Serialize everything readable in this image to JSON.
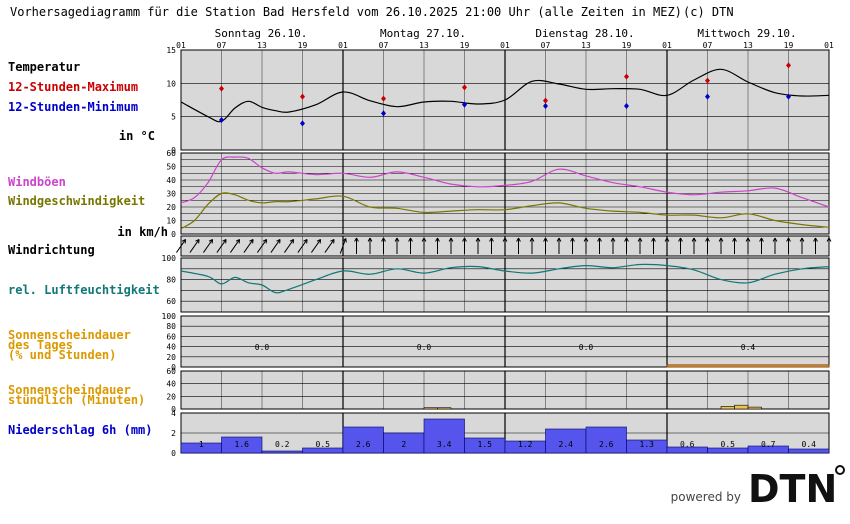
{
  "header": {
    "title": "Vorhersagediagramm für die Station Bad Hersfeld vom 26.10.2025 21:00 Uhr (alle Zeiten in MEZ)",
    "copyright": "(c) DTN"
  },
  "days": [
    "Sonntag 26.10.",
    "Montag 27.10.",
    "Dienstag 28.10.",
    "Mittwoch 29.10."
  ],
  "hour_ticks": [
    "01",
    "07",
    "13",
    "19",
    "01",
    "07",
    "13",
    "19",
    "01",
    "07",
    "13",
    "19",
    "01",
    "07",
    "13",
    "19",
    "01"
  ],
  "labels": {
    "temperature": "Temperatur",
    "max": "12-Stunden-Maximum",
    "min": "12-Stunden-Minimum",
    "temp_unit": "in °C",
    "gusts": "Windböen",
    "wind_speed": "Windgeschwindigkeit",
    "wind_unit": "in km/h",
    "wind_dir": "Windrichtung",
    "humidity": "rel. Luftfeuchtigkeit",
    "sun_daily_1": "Sonnenscheindauer",
    "sun_daily_2": "des Tages",
    "sun_daily_3": "(% und Stunden)",
    "sun_hourly_1": "Sonnenscheindauer",
    "sun_hourly_2": "stündlich (Minuten)",
    "precip": "Niederschlag 6h (mm)"
  },
  "axes": {
    "temp_ticks": [
      "15",
      "10",
      "5",
      "0"
    ],
    "wind_ticks": [
      "60",
      "50",
      "40",
      "30",
      "20",
      "10",
      "0"
    ],
    "hum_ticks": [
      "100",
      "80",
      "60"
    ],
    "sun_daily_ticks": [
      "100",
      "80",
      "60",
      "40",
      "20",
      "0"
    ],
    "sun_hourly_ticks": [
      "60",
      "40",
      "20",
      "0"
    ],
    "precip_ticks": [
      "4",
      "2",
      "0"
    ]
  },
  "colors": {
    "panel_bg": "#d8d8d8",
    "max": "#cc0000",
    "min": "#0000cc",
    "gusts": "#cc44cc",
    "wind": "#777700",
    "humidity": "#117777",
    "sun_label": "#dd9900",
    "sun_bar": "#f0c050",
    "precip_label": "#0000cc",
    "precip_bar": "#5555ee"
  },
  "chart_data": {
    "type": "meteogram",
    "temperature": {
      "x_hours": [
        0,
        6,
        9,
        12,
        15,
        18,
        21,
        24,
        30,
        36,
        42,
        48,
        54,
        60,
        66,
        72,
        78,
        84,
        90,
        96,
        102,
        108,
        114,
        120,
        126,
        132,
        138,
        144
      ],
      "values": [
        7.2,
        5.0,
        4.3,
        6.3,
        7.3,
        6.4,
        5.9,
        5.7,
        6.8,
        8.7,
        7.4,
        6.5,
        7.2,
        7.3,
        6.9,
        7.5,
        10.3,
        9.9,
        9.1,
        9.2,
        9.1,
        8.2,
        10.5,
        12.1,
        10.2,
        8.6,
        8.1,
        8.2
      ],
      "max_points": [
        {
          "x": 9,
          "y": 9.2
        },
        {
          "x": 27,
          "y": 8.0
        },
        {
          "x": 45,
          "y": 7.7
        },
        {
          "x": 63,
          "y": 9.4
        },
        {
          "x": 81,
          "y": 7.4
        },
        {
          "x": 99,
          "y": 11.0
        },
        {
          "x": 117,
          "y": 10.4
        },
        {
          "x": 135,
          "y": 12.7
        }
      ],
      "min_points": [
        {
          "x": 9,
          "y": 4.5
        },
        {
          "x": 27,
          "y": 4.0
        },
        {
          "x": 45,
          "y": 5.5
        },
        {
          "x": 63,
          "y": 6.8
        },
        {
          "x": 81,
          "y": 6.6
        },
        {
          "x": 99,
          "y": 6.6
        },
        {
          "x": 117,
          "y": 8.0
        },
        {
          "x": 135,
          "y": 8.0
        }
      ],
      "ylim": [
        0,
        15
      ]
    },
    "wind": {
      "x_hours": [
        0,
        3,
        6,
        9,
        12,
        15,
        18,
        21,
        24,
        30,
        36,
        42,
        48,
        54,
        60,
        66,
        72,
        78,
        84,
        90,
        96,
        102,
        108,
        114,
        120,
        126,
        132,
        138,
        144
      ],
      "gusts": [
        23,
        27,
        38,
        55,
        57,
        56,
        49,
        45,
        46,
        44,
        45,
        42,
        46,
        42,
        37,
        35,
        36,
        39,
        48,
        43,
        38,
        35,
        31,
        29,
        31,
        32,
        34,
        27,
        20
      ],
      "speed": [
        4,
        10,
        22,
        30,
        29,
        25,
        23,
        24,
        24,
        26,
        28,
        20,
        19,
        16,
        17,
        18,
        18,
        21,
        23,
        19,
        17,
        16,
        14,
        14,
        12,
        15,
        10,
        7,
        5
      ],
      "ylim": [
        0,
        60
      ]
    },
    "wind_direction": {
      "x_hours": [
        0,
        3,
        6,
        9,
        12,
        15,
        18,
        21,
        24,
        27,
        30,
        33,
        36,
        39,
        42,
        45,
        48,
        51,
        54,
        57,
        60,
        63,
        66,
        69,
        72,
        75,
        78,
        81,
        84,
        87,
        90,
        93,
        96,
        99,
        102,
        105,
        108,
        111,
        114,
        117,
        120,
        123,
        126,
        129,
        132,
        135,
        138,
        141,
        144
      ],
      "deg": [
        215,
        215,
        215,
        215,
        215,
        215,
        215,
        215,
        215,
        215,
        215,
        215,
        200,
        180,
        180,
        180,
        180,
        180,
        180,
        180,
        180,
        180,
        180,
        180,
        180,
        180,
        180,
        180,
        180,
        180,
        180,
        180,
        180,
        180,
        180,
        180,
        180,
        180,
        180,
        180,
        180,
        180,
        180,
        180,
        180,
        180,
        180,
        180,
        180
      ]
    },
    "humidity": {
      "x_hours": [
        0,
        6,
        9,
        12,
        15,
        18,
        21,
        24,
        30,
        36,
        42,
        48,
        54,
        60,
        66,
        72,
        78,
        84,
        90,
        96,
        102,
        108,
        114,
        120,
        126,
        132,
        138,
        144
      ],
      "values": [
        88,
        83,
        76,
        82,
        77,
        75,
        68,
        71,
        80,
        88,
        85,
        90,
        86,
        91,
        92,
        88,
        86,
        90,
        93,
        91,
        94,
        93,
        89,
        80,
        77,
        85,
        90,
        92
      ],
      "ylim": [
        50,
        100
      ]
    },
    "sunshine_daily": {
      "days": [
        "Sonntag 26.10.",
        "Montag 27.10.",
        "Dienstag 28.10.",
        "Mittwoch 29.10."
      ],
      "hours": [
        "0.0",
        "0.0",
        "0.0",
        "0.4"
      ],
      "percent": [
        0,
        0,
        0,
        4
      ]
    },
    "sunshine_hourly": {
      "x_hours": [
        54,
        57,
        120,
        123,
        126
      ],
      "minutes": [
        2,
        2,
        4,
        6,
        3
      ]
    },
    "precipitation_6h": {
      "values": [
        "1",
        "1.6",
        "0.2",
        "0.5",
        "2.6",
        "2",
        "3.4",
        "1.5",
        "1.2",
        "2.4",
        "2.6",
        "1.3",
        "0.6",
        "0.5",
        "0.7",
        "0.4"
      ],
      "ylim": [
        0,
        4
      ]
    }
  },
  "footer": {
    "powered_by": "powered by",
    "brand": "DTN"
  }
}
